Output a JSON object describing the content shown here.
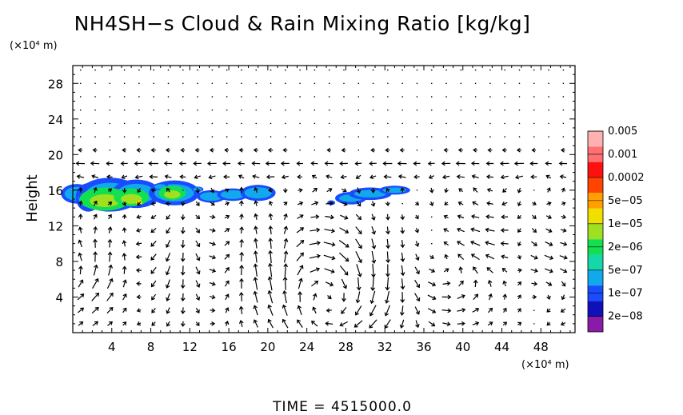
{
  "chart_data": {
    "type": "heatmap",
    "title": "NH4SH−s Cloud & Rain Mixing Ratio [kg/kg]",
    "ylabel": "Height",
    "y_unit": "(×10⁴ m)",
    "x_unit": "(×10⁴ m)",
    "x_range": [
      0,
      51.5
    ],
    "y_range": [
      0,
      30
    ],
    "x_ticks": [
      "4",
      "8",
      "12",
      "16",
      "20",
      "24",
      "28",
      "32",
      "36",
      "40",
      "44",
      "48"
    ],
    "y_ticks": [
      "4",
      "8",
      "12",
      "16",
      "20",
      "24",
      "28"
    ],
    "colorbar": {
      "labels": [
        "2e−08",
        "1e−07",
        "5e−07",
        "2e−06",
        "1e−05",
        "5e−05",
        "0.0002",
        "0.001",
        "0.005"
      ],
      "colors": [
        "#8a1aa8",
        "#1010b8",
        "#1a4cff",
        "#12a8ec",
        "#14d8a8",
        "#12e050",
        "#a0e020",
        "#f0e000",
        "#ffa000",
        "#ff4400",
        "#ff1010",
        "#ff7070",
        "#ffb0b0"
      ]
    },
    "cloud_regions": [
      {
        "x": [
          0,
          21
        ],
        "y": [
          13.5,
          17.3
        ],
        "peak": "5e−05"
      },
      {
        "x": [
          27,
          35
        ],
        "y": [
          14.3,
          16.5
        ],
        "peak": "5e−07"
      }
    ],
    "flow_vectors": "wind vector field overlay",
    "time_label": "TIME  =  4515000.0"
  }
}
